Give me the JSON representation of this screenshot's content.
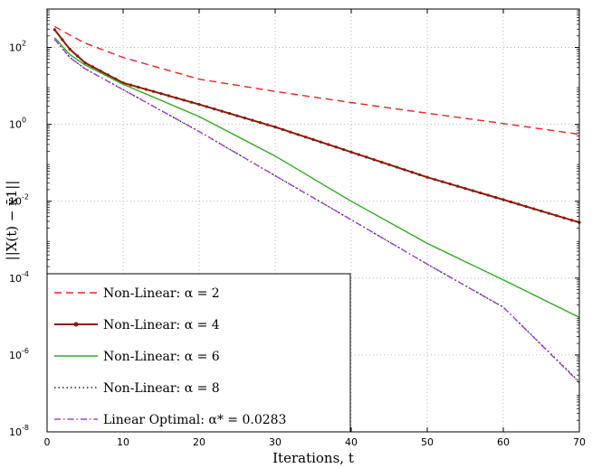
{
  "chart_data": {
    "type": "line",
    "title": "",
    "xlabel": "Iterations, t",
    "ylabel": "||X(t) − x̄1||",
    "xlim": [
      0,
      70
    ],
    "ylim_exp": [
      -8,
      3
    ],
    "y_scale": "log",
    "grid": true,
    "legend_position": "bottom-left",
    "x_ticks": [
      0,
      10,
      20,
      30,
      40,
      50,
      60,
      70
    ],
    "y_ticks": [
      {
        "base": "10",
        "exp": "2",
        "value": 100
      },
      {
        "base": "10",
        "exp": "0",
        "value": 1
      },
      {
        "base": "10",
        "exp": "-2",
        "value": 0.01
      },
      {
        "base": "10",
        "exp": "-4",
        "value": 0.0001
      },
      {
        "base": "10",
        "exp": "-6",
        "value": 1e-06
      },
      {
        "base": "10",
        "exp": "-8",
        "value": 1e-08
      }
    ],
    "series": [
      {
        "name": "Non-Linear: α = 2",
        "color": "#ee2222",
        "style": "dashed",
        "x": [
          1,
          3,
          5,
          10,
          20,
          30,
          40,
          50,
          60,
          70
        ],
        "y": [
          350,
          210,
          130,
          55,
          15,
          7.2,
          3.7,
          1.95,
          1.05,
          0.55
        ]
      },
      {
        "name": "Non-Linear: α = 4",
        "color": "#8b1a0a",
        "style": "solid-markers",
        "x": [
          1,
          2,
          3,
          5,
          10,
          20,
          30,
          40,
          50,
          60,
          70
        ],
        "y": [
          290,
          160,
          90,
          40,
          12,
          3.3,
          0.85,
          0.19,
          0.042,
          0.011,
          0.0028
        ]
      },
      {
        "name": "Non-Linear: α = 6",
        "color": "#33aa22",
        "style": "solid",
        "x": [
          1,
          3,
          5,
          10,
          20,
          30,
          40,
          50,
          60,
          70
        ],
        "y": [
          180,
          65,
          35,
          11,
          1.6,
          0.15,
          0.01,
          0.0008,
          9e-05,
          9.5e-06
        ]
      },
      {
        "name": "Non-Linear: α = 8",
        "color": "#222222",
        "style": "dotted",
        "x": [
          1,
          3,
          5,
          10,
          20,
          30,
          40,
          50,
          60,
          70
        ],
        "y": [
          160,
          55,
          28,
          8,
          0.65,
          0.046,
          0.0033,
          0.00023,
          1.75e-05,
          2e-07
        ]
      },
      {
        "name": "Linear Optimal: α* = 0.0283",
        "color": "#a040e0",
        "style": "dashdot",
        "x": [
          1,
          3,
          5,
          10,
          20,
          30,
          40,
          50,
          60,
          70
        ],
        "y": [
          165,
          55,
          28,
          8,
          0.65,
          0.046,
          0.0033,
          0.00023,
          1.75e-05,
          1.9e-07
        ]
      }
    ]
  }
}
